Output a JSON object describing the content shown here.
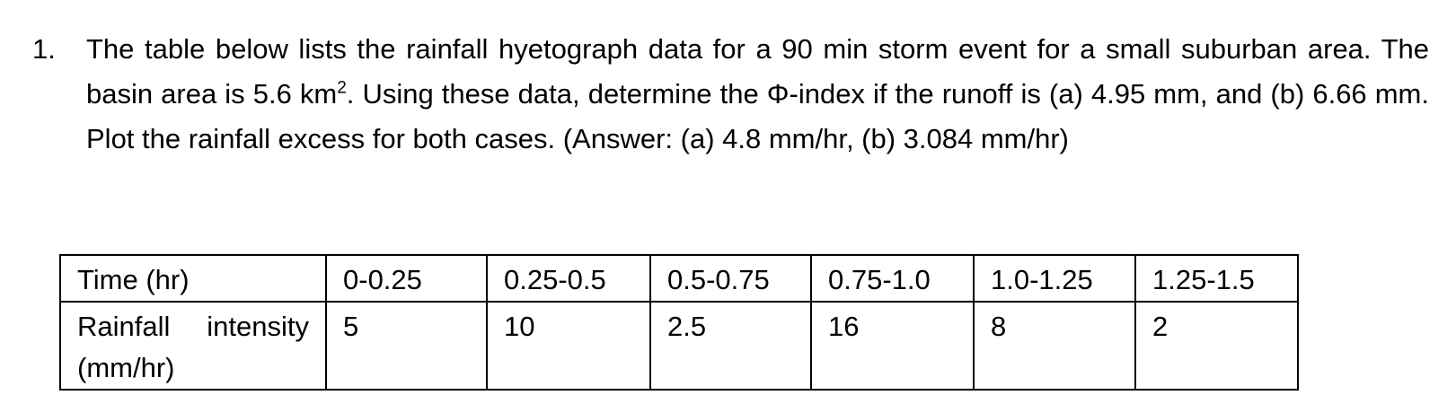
{
  "problem": {
    "number": "1.",
    "text_part1": "The table below lists the rainfall hyetograph data for a 90 min storm event for a small suburban area. The basin area is 5.6 km",
    "superscript": "2",
    "text_part2": ". Using these data, determine the Φ-index if the runoff is (a) 4.95 mm, and (b) 6.66 mm. Plot the rainfall excess for both cases. (Answer: (a) 4.8 mm/hr, (b) 3.084 mm/hr)"
  },
  "table": {
    "row_time": {
      "label": "Time (hr)",
      "cells": [
        "0-0.25",
        "0.25-0.5",
        "0.5-0.75",
        "0.75-1.0",
        "1.0-1.25",
        "1.25-1.5"
      ]
    },
    "row_intensity": {
      "label": "Rainfall intensity (mm/hr)",
      "cells": [
        "5",
        "10",
        "2.5",
        "16",
        "8",
        "2"
      ]
    }
  }
}
